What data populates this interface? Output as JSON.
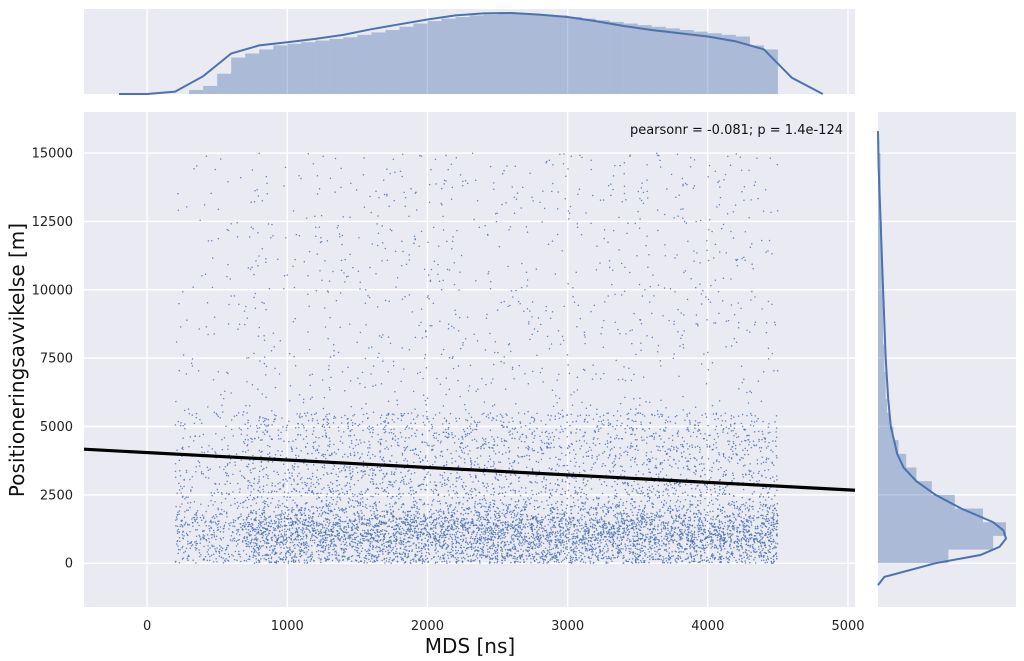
{
  "chart_data": {
    "type": "scatter",
    "title": "",
    "xlabel": "MDS [ns]",
    "ylabel": "Positioneringsavvikelse [m]",
    "xlim": [
      -450,
      5050
    ],
    "ylim": [
      -1600,
      16500
    ],
    "xticks": [
      0,
      1000,
      2000,
      3000,
      4000,
      5000
    ],
    "yticks": [
      0,
      2500,
      5000,
      7500,
      10000,
      12500,
      15000
    ],
    "grid": true,
    "annotation": "pearsonr = -0.081; p = 1.4e-124",
    "regression_line": {
      "x": [
        -450,
        5050
      ],
      "y": [
        4170,
        2670
      ]
    },
    "point_color": "#4c72b0",
    "line_color": "#000000",
    "background": "#eaeaf2",
    "scatter_distribution": {
      "x_range": [
        200,
        4500
      ],
      "y_range": [
        0,
        15000
      ],
      "description_points_sample": [
        {
          "x": 1000,
          "y": 1200
        },
        {
          "x": 2000,
          "y": 900
        },
        {
          "x": 3000,
          "y": 1100
        },
        {
          "x": 4000,
          "y": 1500
        },
        {
          "x": 2500,
          "y": 4000
        },
        {
          "x": 1500,
          "y": 10000
        }
      ]
    },
    "marginal_x": {
      "type": "histogram+kde",
      "bins_x": [
        300,
        400,
        500,
        600,
        700,
        800,
        900,
        1000,
        1100,
        1200,
        1300,
        1400,
        1500,
        1600,
        1700,
        1800,
        1900,
        2000,
        2100,
        2200,
        2300,
        2400,
        2500,
        2600,
        2700,
        2800,
        2900,
        3000,
        3100,
        3200,
        3300,
        3400,
        3500,
        3600,
        3700,
        3800,
        3900,
        4000,
        4100,
        4200,
        4300,
        4400,
        4500
      ],
      "counts": [
        0.05,
        0.1,
        0.25,
        0.45,
        0.5,
        0.55,
        0.6,
        0.62,
        0.64,
        0.66,
        0.68,
        0.7,
        0.73,
        0.76,
        0.79,
        0.83,
        0.87,
        0.9,
        0.93,
        0.95,
        0.97,
        0.98,
        0.99,
        1.0,
        0.99,
        0.98,
        0.97,
        0.95,
        0.93,
        0.91,
        0.89,
        0.87,
        0.85,
        0.83,
        0.81,
        0.79,
        0.77,
        0.75,
        0.73,
        0.71,
        0.6,
        0.55
      ],
      "kde_x": [
        -200,
        0,
        200,
        400,
        600,
        800,
        1000,
        1200,
        1400,
        1600,
        1800,
        2000,
        2200,
        2400,
        2600,
        2800,
        3000,
        3200,
        3400,
        3600,
        3800,
        4000,
        4200,
        4400,
        4600,
        4820
      ],
      "kde_y": [
        0.0,
        0.0,
        0.03,
        0.22,
        0.5,
        0.6,
        0.64,
        0.68,
        0.73,
        0.8,
        0.86,
        0.92,
        0.97,
        0.995,
        1.0,
        0.98,
        0.95,
        0.9,
        0.84,
        0.79,
        0.75,
        0.71,
        0.65,
        0.55,
        0.2,
        0.0
      ]
    },
    "marginal_y": {
      "type": "histogram+kde",
      "bins_y": [
        0,
        500,
        1000,
        1500,
        2000,
        2500,
        3000,
        3500,
        4000,
        4500,
        5000,
        5500,
        6000,
        7000,
        8000,
        10000,
        12500,
        15000
      ],
      "counts": [
        0.55,
        0.9,
        1.0,
        0.82,
        0.6,
        0.42,
        0.3,
        0.22,
        0.16,
        0.12,
        0.09,
        0.07,
        0.06,
        0.05,
        0.04,
        0.03,
        0.02,
        0.01
      ],
      "kde_y": [
        -800,
        -500,
        0,
        300,
        600,
        900,
        1200,
        1500,
        2000,
        2500,
        3000,
        3500,
        4000,
        5000,
        6000,
        7500,
        10000,
        12500,
        14500,
        15800
      ],
      "kde_x": [
        0.0,
        0.05,
        0.45,
        0.8,
        0.95,
        1.0,
        0.98,
        0.9,
        0.65,
        0.45,
        0.3,
        0.2,
        0.15,
        0.1,
        0.08,
        0.06,
        0.04,
        0.02,
        0.005,
        0.0
      ]
    }
  }
}
